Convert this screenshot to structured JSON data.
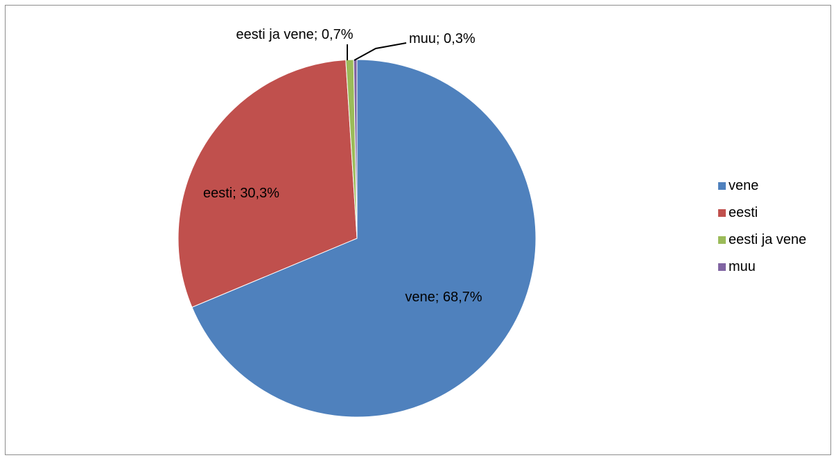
{
  "chart_data": {
    "type": "pie",
    "title": "",
    "legend_position": "right",
    "slices": [
      {
        "name": "vene",
        "value": 68.7,
        "label": "vene; 68,7%",
        "color": "#4F81BD"
      },
      {
        "name": "eesti",
        "value": 30.3,
        "label": "eesti; 30,3%",
        "color": "#C0504D"
      },
      {
        "name": "eesti ja vene",
        "value": 0.7,
        "label": "eesti ja vene; 0,7%",
        "color": "#9BBB59"
      },
      {
        "name": "muu",
        "value": 0.3,
        "label": "muu; 0,3%",
        "color": "#8064A2"
      }
    ]
  }
}
